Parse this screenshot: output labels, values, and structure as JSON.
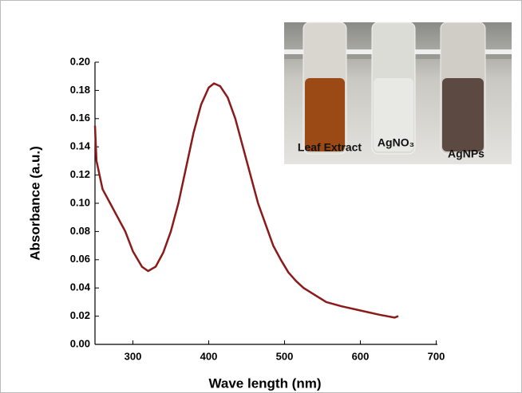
{
  "chart_data": {
    "type": "line",
    "x_label": "Wave length (nm)",
    "y_label": "Absorbance (a.u.)",
    "x": [
      250,
      252,
      260,
      270,
      280,
      290,
      300,
      312,
      320,
      330,
      340,
      350,
      360,
      370,
      380,
      390,
      400,
      407,
      415,
      425,
      435,
      445,
      455,
      465,
      475,
      485,
      495,
      505,
      515,
      525,
      540,
      555,
      575,
      600,
      625,
      645,
      650
    ],
    "values": [
      0.155,
      0.13,
      0.11,
      0.1,
      0.09,
      0.08,
      0.066,
      0.055,
      0.052,
      0.055,
      0.065,
      0.08,
      0.1,
      0.125,
      0.15,
      0.17,
      0.182,
      0.185,
      0.183,
      0.175,
      0.16,
      0.14,
      0.12,
      0.1,
      0.085,
      0.07,
      0.06,
      0.051,
      0.045,
      0.04,
      0.035,
      0.03,
      0.027,
      0.024,
      0.021,
      0.019,
      0.02
    ],
    "color": "#8b1a1a",
    "xlim": [
      250,
      700
    ],
    "xticks": [
      300,
      400,
      500,
      600,
      700
    ],
    "ylim": [
      0,
      0.2
    ],
    "yticks": [
      {
        "value": 0,
        "label": "0.00"
      },
      {
        "value": 0.02,
        "label": "0.02"
      },
      {
        "value": 0.04,
        "label": "0.04"
      },
      {
        "value": 0.06,
        "label": "0.06"
      },
      {
        "value": 0.08,
        "label": "0.08"
      },
      {
        "value": 0.1,
        "label": "0.10"
      },
      {
        "value": 0.12,
        "label": "0.12"
      },
      {
        "value": 0.14,
        "label": "0.14"
      },
      {
        "value": 0.16,
        "label": "0.16"
      },
      {
        "value": 0.18,
        "label": "0.18"
      },
      {
        "value": 0.2,
        "label": "0.20"
      }
    ],
    "inset_labels": [
      "Leaf Extract",
      "AgNO₃",
      "AgNPs"
    ]
  }
}
